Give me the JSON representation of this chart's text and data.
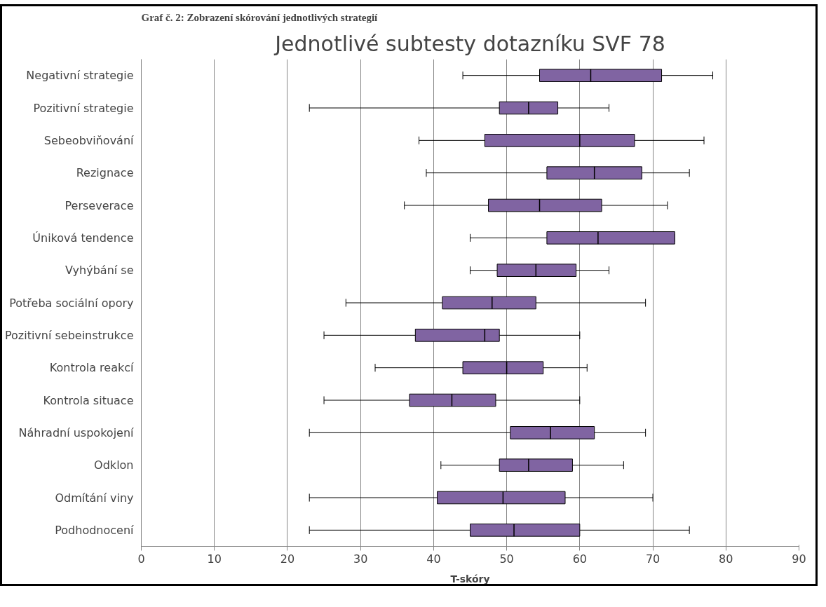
{
  "chart_data": {
    "type": "box",
    "orientation": "horizontal",
    "title": "Jednotlivé subtesty dotazníku SVF 78",
    "xlabel": "T-skóry",
    "annotations": [
      "Graf č. 2: Zobrazení skórování jednotlivých strategií"
    ],
    "categories": [
      "Negativní strategie",
      "Pozitivní strategie",
      "Sebeobviňování",
      "Rezignace",
      "Perseverace",
      "Úniková tendence",
      "Vyhýbání se",
      "Potřeba sociální opory",
      "Pozitivní sebeinstrukce",
      "Kontrola reakcí",
      "Kontrola situace",
      "Náhradní uspokojení",
      "Odklon",
      "Odmítání viny",
      "Podhodnocení"
    ],
    "color": "#8064a2",
    "boxes": [
      {
        "low": 44,
        "q1": 54.5,
        "median": 61.5,
        "q3": 71.2,
        "high": 78.2
      },
      {
        "low": 23,
        "q1": 49,
        "median": 53,
        "q3": 57,
        "high": 64
      },
      {
        "low": 38,
        "q1": 47,
        "median": 60,
        "q3": 67.5,
        "high": 77
      },
      {
        "low": 39,
        "q1": 55.5,
        "median": 62,
        "q3": 68.5,
        "high": 75
      },
      {
        "low": 36,
        "q1": 47.5,
        "median": 54.5,
        "q3": 63,
        "high": 72
      },
      {
        "low": 45,
        "q1": 55.5,
        "median": 62.5,
        "q3": 73,
        "high": 73
      },
      {
        "low": 45,
        "q1": 48.7,
        "median": 54,
        "q3": 59.5,
        "high": 64
      },
      {
        "low": 28,
        "q1": 41.2,
        "median": 48,
        "q3": 54,
        "high": 69
      },
      {
        "low": 25,
        "q1": 37.5,
        "median": 47,
        "q3": 49,
        "high": 60
      },
      {
        "low": 32,
        "q1": 44,
        "median": 50,
        "q3": 55,
        "high": 61
      },
      {
        "low": 25,
        "q1": 36.7,
        "median": 42.5,
        "q3": 48.5,
        "high": 60
      },
      {
        "low": 23,
        "q1": 50.5,
        "median": 56,
        "q3": 62,
        "high": 69
      },
      {
        "low": 41,
        "q1": 49,
        "median": 53,
        "q3": 59,
        "high": 66
      },
      {
        "low": 23,
        "q1": 40.5,
        "median": 49.5,
        "q3": 58,
        "high": 70
      },
      {
        "low": 23,
        "q1": 45,
        "median": 51,
        "q3": 60,
        "high": 75
      }
    ],
    "xlim": [
      0,
      90
    ],
    "xticks": [
      0,
      10,
      20,
      30,
      40,
      50,
      60,
      70,
      80,
      90
    ],
    "grid": "x"
  }
}
